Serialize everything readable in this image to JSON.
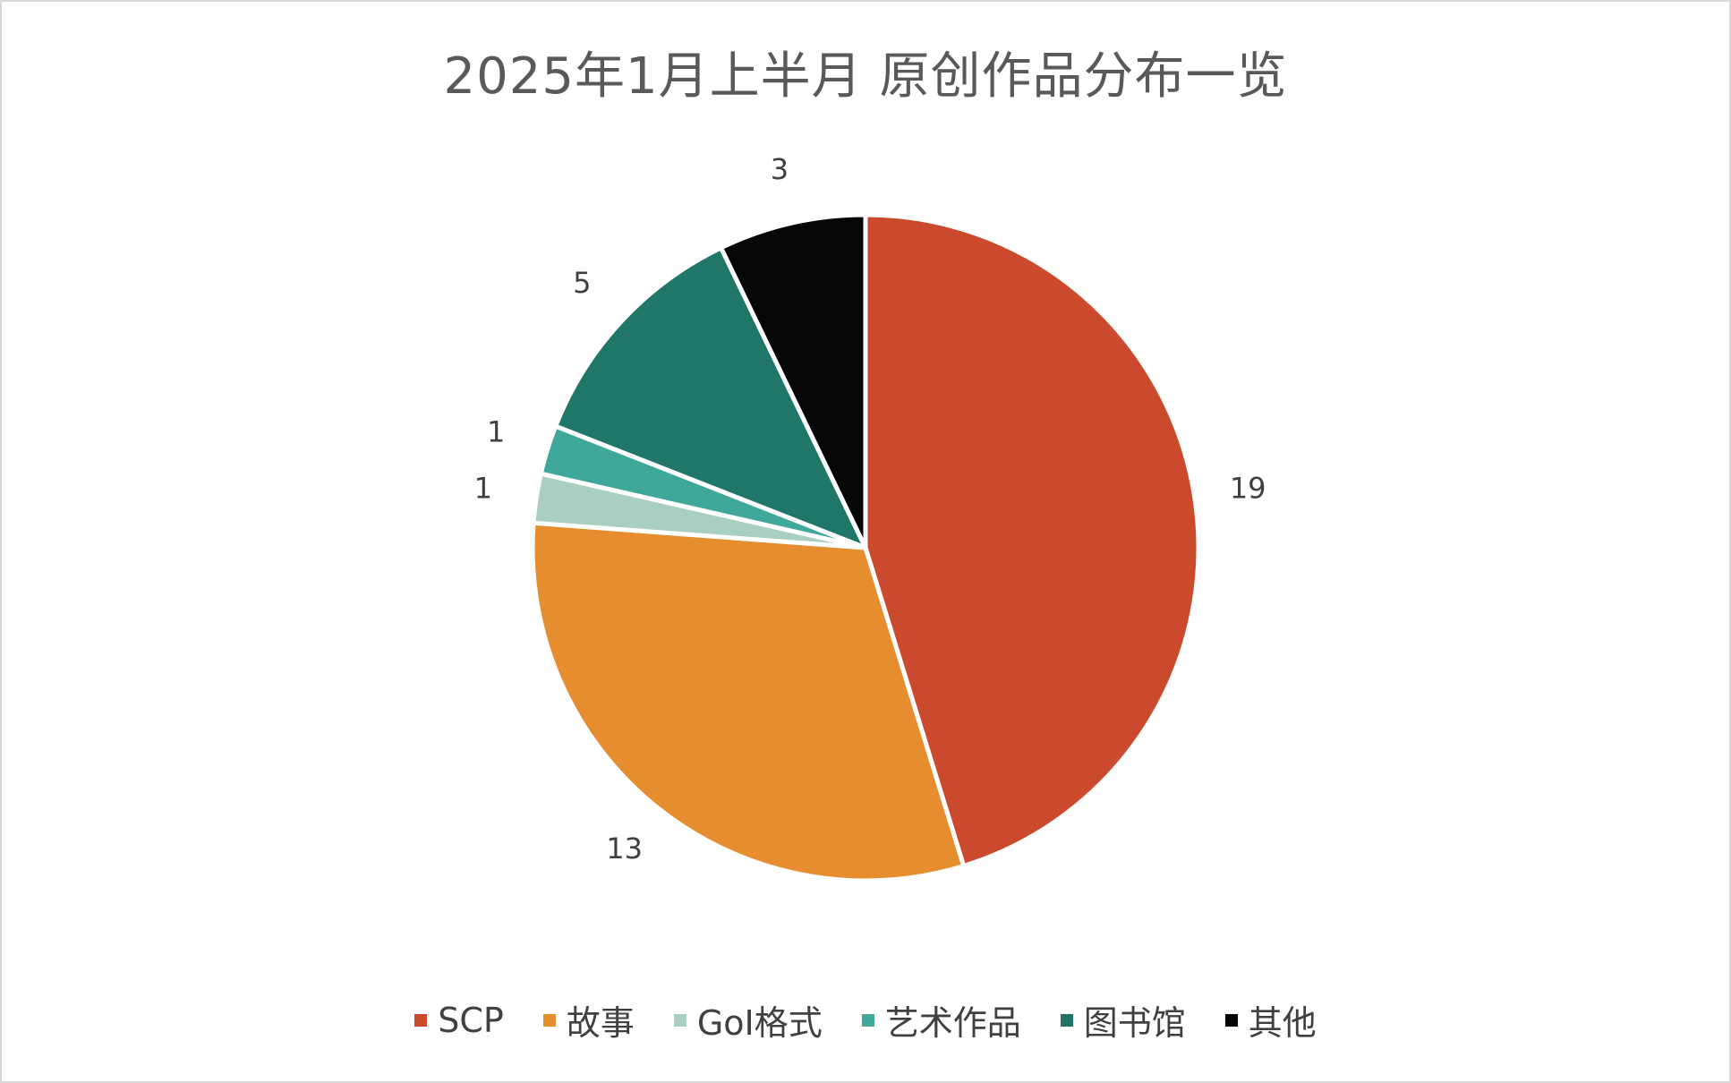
{
  "chart_data": {
    "type": "pie",
    "title": "2025年1月上半月 原创作品分布一览",
    "categories": [
      "SCP",
      "故事",
      "GoI格式",
      "艺术作品",
      "图书馆",
      "其他"
    ],
    "values": [
      19,
      13,
      1,
      1,
      5,
      3
    ],
    "colors": [
      "#cb4a2e",
      "#e68d30",
      "#a8cfc0",
      "#40a89a",
      "#1f7669",
      "#060606"
    ],
    "start_angle_deg": 0,
    "direction": "clockwise",
    "legend_position": "bottom",
    "data_labels": "outside"
  }
}
